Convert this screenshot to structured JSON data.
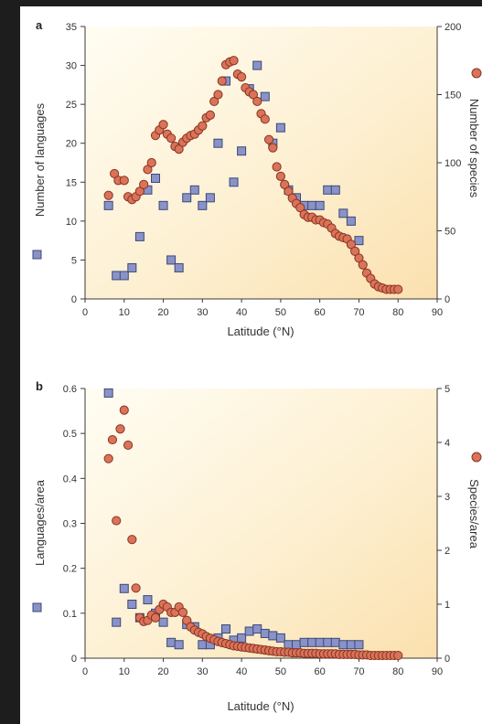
{
  "colors": {
    "square_fill": "#8a93c8",
    "square_stroke": "#3c4878",
    "circle_fill": "#d9735a",
    "circle_stroke": "#8a3420",
    "bg_light": "#fffdf3",
    "bg_warm": "#fbe0ae"
  },
  "chart_data": [
    {
      "panel": "a",
      "type": "scatter",
      "xlabel": "Latitude (°N)",
      "ylabel": "Number of languages",
      "y2label": "Number of species",
      "xlim": [
        0,
        90
      ],
      "ylim": [
        0,
        35
      ],
      "y2lim": [
        0,
        200
      ],
      "xticks": [
        "0",
        "10",
        "20",
        "30",
        "40",
        "50",
        "60",
        "70",
        "80",
        "90"
      ],
      "yticks": [
        "0",
        "5",
        "10",
        "15",
        "20",
        "25",
        "30",
        "35"
      ],
      "y2ticks": [
        "0",
        "50",
        "100",
        "150",
        "200"
      ],
      "series": [
        {
          "axis": "left",
          "marker": "square",
          "points": [
            [
              6,
              12
            ],
            [
              8,
              3
            ],
            [
              10,
              3
            ],
            [
              12,
              4
            ],
            [
              14,
              8
            ],
            [
              16,
              14
            ],
            [
              18,
              15.5
            ],
            [
              20,
              12
            ],
            [
              22,
              5
            ],
            [
              24,
              4
            ],
            [
              26,
              13
            ],
            [
              28,
              14
            ],
            [
              30,
              12
            ],
            [
              32,
              13
            ],
            [
              34,
              20
            ],
            [
              36,
              28
            ],
            [
              38,
              15
            ],
            [
              40,
              19
            ],
            [
              42,
              27
            ],
            [
              44,
              30
            ],
            [
              46,
              26
            ],
            [
              48,
              20
            ],
            [
              50,
              22
            ],
            [
              52,
              14
            ],
            [
              54,
              13
            ],
            [
              56,
              12
            ],
            [
              58,
              12
            ],
            [
              60,
              12
            ],
            [
              62,
              14
            ],
            [
              64,
              14
            ],
            [
              66,
              11
            ],
            [
              68,
              10
            ],
            [
              70,
              7.5
            ]
          ]
        },
        {
          "axis": "right",
          "marker": "circle",
          "points": [
            [
              6,
              76
            ],
            [
              7.5,
              92
            ],
            [
              8.5,
              87
            ],
            [
              10,
              87
            ],
            [
              11,
              75
            ],
            [
              12,
              73
            ],
            [
              13,
              75
            ],
            [
              14,
              79
            ],
            [
              15,
              84
            ],
            [
              16,
              95
            ],
            [
              17,
              100
            ],
            [
              18,
              120
            ],
            [
              19,
              124
            ],
            [
              20,
              128
            ],
            [
              21,
              121
            ],
            [
              22,
              118
            ],
            [
              23,
              112
            ],
            [
              24,
              110
            ],
            [
              25,
              115
            ],
            [
              26,
              118
            ],
            [
              27,
              120
            ],
            [
              28,
              121
            ],
            [
              29,
              124
            ],
            [
              30,
              127
            ],
            [
              31,
              133
            ],
            [
              32,
              135
            ],
            [
              33,
              145
            ],
            [
              34,
              150
            ],
            [
              35,
              160
            ],
            [
              36,
              172
            ],
            [
              37,
              174
            ],
            [
              38,
              175
            ],
            [
              39,
              165
            ],
            [
              40,
              163
            ],
            [
              41,
              155
            ],
            [
              42,
              152
            ],
            [
              43,
              150
            ],
            [
              44,
              145
            ],
            [
              45,
              136
            ],
            [
              46,
              132
            ],
            [
              47,
              117
            ],
            [
              48,
              111
            ],
            [
              49,
              97
            ],
            [
              50,
              90
            ],
            [
              51,
              84
            ],
            [
              52,
              79
            ],
            [
              53,
              74
            ],
            [
              54,
              70
            ],
            [
              55,
              67
            ],
            [
              56,
              62
            ],
            [
              57,
              60
            ],
            [
              58,
              60
            ],
            [
              59,
              58
            ],
            [
              60,
              58
            ],
            [
              61,
              56
            ],
            [
              62,
              55
            ],
            [
              63,
              52
            ],
            [
              64,
              48
            ],
            [
              65,
              46
            ],
            [
              66,
              45
            ],
            [
              67,
              44
            ],
            [
              68,
              40
            ],
            [
              69,
              35
            ],
            [
              70,
              30
            ],
            [
              71,
              25
            ],
            [
              72,
              19
            ],
            [
              73,
              15
            ],
            [
              74,
              11
            ],
            [
              75,
              9
            ],
            [
              76,
              8
            ],
            [
              77,
              7
            ],
            [
              78,
              7
            ],
            [
              79,
              7
            ],
            [
              80,
              7
            ]
          ]
        }
      ]
    },
    {
      "panel": "b",
      "type": "scatter",
      "xlabel": "Latitude (°N)",
      "ylabel": "Languages/area",
      "y2label": "Species/area",
      "xlim": [
        0,
        90
      ],
      "ylim": [
        0,
        0.6
      ],
      "y2lim": [
        0,
        5
      ],
      "xticks": [
        "0",
        "10",
        "20",
        "30",
        "40",
        "50",
        "60",
        "70",
        "80",
        "90"
      ],
      "yticks": [
        "0",
        "0.1",
        "0.2",
        "0.3",
        "0.4",
        "0.5",
        "0.6"
      ],
      "y2ticks": [
        "0",
        "1",
        "2",
        "3",
        "4",
        "5"
      ],
      "series": [
        {
          "axis": "left",
          "marker": "square",
          "points": [
            [
              6,
              0.59
            ],
            [
              8,
              0.08
            ],
            [
              10,
              0.155
            ],
            [
              12,
              0.12
            ],
            [
              14,
              0.09
            ],
            [
              16,
              0.13
            ],
            [
              18,
              0.1
            ],
            [
              20,
              0.08
            ],
            [
              22,
              0.035
            ],
            [
              24,
              0.03
            ],
            [
              26,
              0.075
            ],
            [
              28,
              0.07
            ],
            [
              30,
              0.03
            ],
            [
              32,
              0.03
            ],
            [
              34,
              0.045
            ],
            [
              36,
              0.065
            ],
            [
              38,
              0.04
            ],
            [
              40,
              0.045
            ],
            [
              42,
              0.06
            ],
            [
              44,
              0.065
            ],
            [
              46,
              0.055
            ],
            [
              48,
              0.05
            ],
            [
              50,
              0.045
            ],
            [
              52,
              0.03
            ],
            [
              54,
              0.03
            ],
            [
              56,
              0.035
            ],
            [
              58,
              0.035
            ],
            [
              60,
              0.035
            ],
            [
              62,
              0.035
            ],
            [
              64,
              0.035
            ],
            [
              66,
              0.03
            ],
            [
              68,
              0.03
            ],
            [
              70,
              0.03
            ]
          ]
        },
        {
          "axis": "right",
          "marker": "circle",
          "points": [
            [
              6,
              3.7
            ],
            [
              7,
              4.05
            ],
            [
              8,
              2.55
            ],
            [
              9,
              4.25
            ],
            [
              10,
              4.6
            ],
            [
              11,
              3.95
            ],
            [
              12,
              2.2
            ],
            [
              13,
              1.3
            ],
            [
              14,
              0.75
            ],
            [
              15,
              0.68
            ],
            [
              16,
              0.7
            ],
            [
              17,
              0.8
            ],
            [
              18,
              0.75
            ],
            [
              19,
              0.9
            ],
            [
              20,
              1.0
            ],
            [
              21,
              0.95
            ],
            [
              22,
              0.85
            ],
            [
              23,
              0.85
            ],
            [
              24,
              0.95
            ],
            [
              25,
              0.85
            ],
            [
              26,
              0.7
            ],
            [
              27,
              0.58
            ],
            [
              28,
              0.52
            ],
            [
              29,
              0.48
            ],
            [
              30,
              0.45
            ],
            [
              31,
              0.4
            ],
            [
              32,
              0.37
            ],
            [
              33,
              0.34
            ],
            [
              34,
              0.31
            ],
            [
              35,
              0.29
            ],
            [
              36,
              0.27
            ],
            [
              37,
              0.25
            ],
            [
              38,
              0.23
            ],
            [
              39,
              0.22
            ],
            [
              40,
              0.21
            ],
            [
              41,
              0.2
            ],
            [
              42,
              0.19
            ],
            [
              43,
              0.18
            ],
            [
              44,
              0.17
            ],
            [
              45,
              0.16
            ],
            [
              46,
              0.15
            ],
            [
              47,
              0.14
            ],
            [
              48,
              0.13
            ],
            [
              49,
              0.12
            ],
            [
              50,
              0.12
            ],
            [
              51,
              0.11
            ],
            [
              52,
              0.11
            ],
            [
              53,
              0.1
            ],
            [
              54,
              0.1
            ],
            [
              55,
              0.1
            ],
            [
              56,
              0.09
            ],
            [
              57,
              0.09
            ],
            [
              58,
              0.09
            ],
            [
              59,
              0.09
            ],
            [
              60,
              0.08
            ],
            [
              61,
              0.08
            ],
            [
              62,
              0.08
            ],
            [
              63,
              0.08
            ],
            [
              64,
              0.08
            ],
            [
              65,
              0.07
            ],
            [
              66,
              0.07
            ],
            [
              67,
              0.07
            ],
            [
              68,
              0.07
            ],
            [
              69,
              0.07
            ],
            [
              70,
              0.06
            ],
            [
              71,
              0.06
            ],
            [
              72,
              0.06
            ],
            [
              73,
              0.05
            ],
            [
              74,
              0.05
            ],
            [
              75,
              0.05
            ],
            [
              76,
              0.05
            ],
            [
              77,
              0.05
            ],
            [
              78,
              0.05
            ],
            [
              79,
              0.05
            ],
            [
              80,
              0.05
            ]
          ]
        }
      ]
    }
  ]
}
